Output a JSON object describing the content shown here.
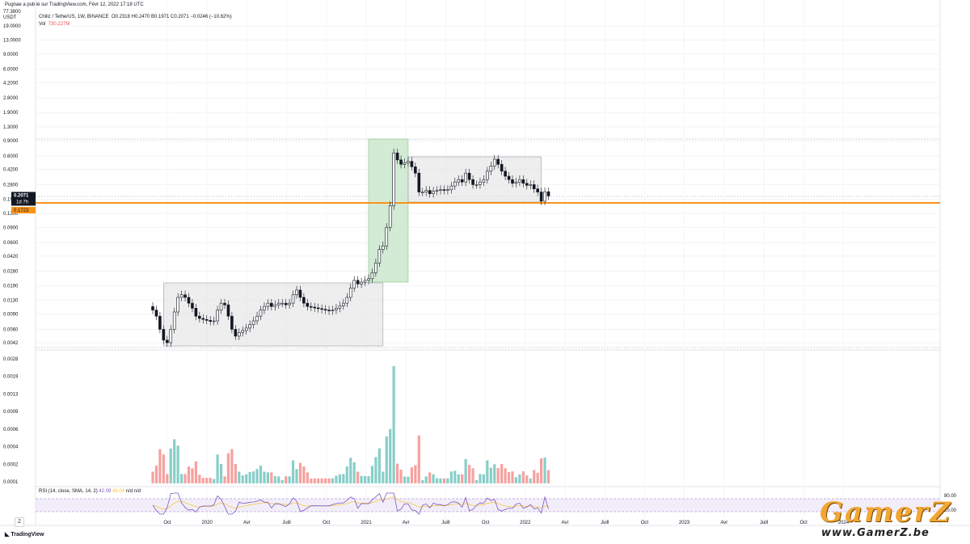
{
  "topbar": {
    "publisher_text": "Pugnae a publié sur TradingView.com, Févr 12, 2022 17:18 UTC"
  },
  "legend": {
    "symbol": "Chiliz / TetherUS, 1W, BINANCE",
    "ohlc": "O0.2318  H0.2470  B0.1971  C0.2071  −0.0246 (−10.62%)",
    "vol_label": "Vol",
    "vol_value": "730.227M",
    "rsi": "RSI (14, close, SMA, 14, 2)",
    "rsi_value": "42.09",
    "rsi_ma_value": "48.04",
    "rsi_na": "n/d  n/d"
  },
  "axis": {
    "unit_top": "77.3800",
    "unit": "USDT",
    "last_price": "0.2071",
    "last_time": "1d 7h",
    "hline_price": "0.1723",
    "rsi_upper": "80.00",
    "rsi_lower": "20.00"
  },
  "footer": {
    "logo": "TradingView",
    "z_button": "Z"
  },
  "watermark": {
    "big": "GamerZ",
    "url": "www.GamerZ.be"
  },
  "colors": {
    "bull": "#26a69a",
    "bear": "#ef5350",
    "hline": "#f7931a",
    "green_box": "#c8e6c9",
    "gray_box": "#e0e0e0",
    "rsi_line": "#7e57c2",
    "rsi_ma": "#f5c842"
  },
  "chart_data": {
    "type": "candlestick",
    "scale": "log",
    "price_ticks": [
      "19.0000",
      "13.0000",
      "9.0000",
      "6.0000",
      "4.2000",
      "2.8000",
      "1.9000",
      "1.3000",
      "0.9000",
      "0.6000",
      "0.4200",
      "0.2800",
      "0.1900",
      "0.1300",
      "0.0900",
      "0.0600",
      "0.0420",
      "0.0280",
      "0.0190",
      "0.0130",
      "0.0090",
      "0.0060",
      "0.0042"
    ],
    "volume_ticks": [
      "0.0028",
      "0.0019",
      "0.0013",
      "0.0009",
      "0.0006",
      "0.0004",
      "0.0002",
      "0.0001"
    ],
    "time_labels": [
      "Oct",
      "2020",
      "Avr",
      "Juill",
      "Oct",
      "2021",
      "Avr",
      "Juill",
      "Oct",
      "2022",
      "Avr",
      "Juill",
      "Oct",
      "2023",
      "Avr",
      "Juill",
      "Oct",
      "2024"
    ],
    "close_series": [
      0.01,
      0.0085,
      0.006,
      0.0045,
      0.0042,
      0.006,
      0.0095,
      0.014,
      0.015,
      0.014,
      0.012,
      0.0105,
      0.0085,
      0.008,
      0.0078,
      0.0076,
      0.0074,
      0.0075,
      0.01,
      0.012,
      0.0115,
      0.0085,
      0.006,
      0.005,
      0.0055,
      0.0058,
      0.0062,
      0.0068,
      0.0075,
      0.0085,
      0.01,
      0.011,
      0.012,
      0.011,
      0.0115,
      0.012,
      0.012,
      0.0115,
      0.012,
      0.015,
      0.017,
      0.014,
      0.012,
      0.011,
      0.0108,
      0.0106,
      0.0104,
      0.0102,
      0.01,
      0.0098,
      0.01,
      0.0105,
      0.0112,
      0.012,
      0.014,
      0.018,
      0.022,
      0.02,
      0.021,
      0.022,
      0.023,
      0.027,
      0.035,
      0.05,
      0.055,
      0.09,
      0.16,
      0.65,
      0.54,
      0.48,
      0.5,
      0.52,
      0.45,
      0.38,
      0.23,
      0.23,
      0.24,
      0.22,
      0.235,
      0.24,
      0.245,
      0.24,
      0.245,
      0.27,
      0.3,
      0.32,
      0.3,
      0.38,
      0.32,
      0.28,
      0.28,
      0.3,
      0.32,
      0.4,
      0.46,
      0.55,
      0.48,
      0.4,
      0.35,
      0.32,
      0.29,
      0.3,
      0.32,
      0.29,
      0.275,
      0.28,
      0.25,
      0.23,
      0.18,
      0.2318,
      0.2071
    ]
  }
}
